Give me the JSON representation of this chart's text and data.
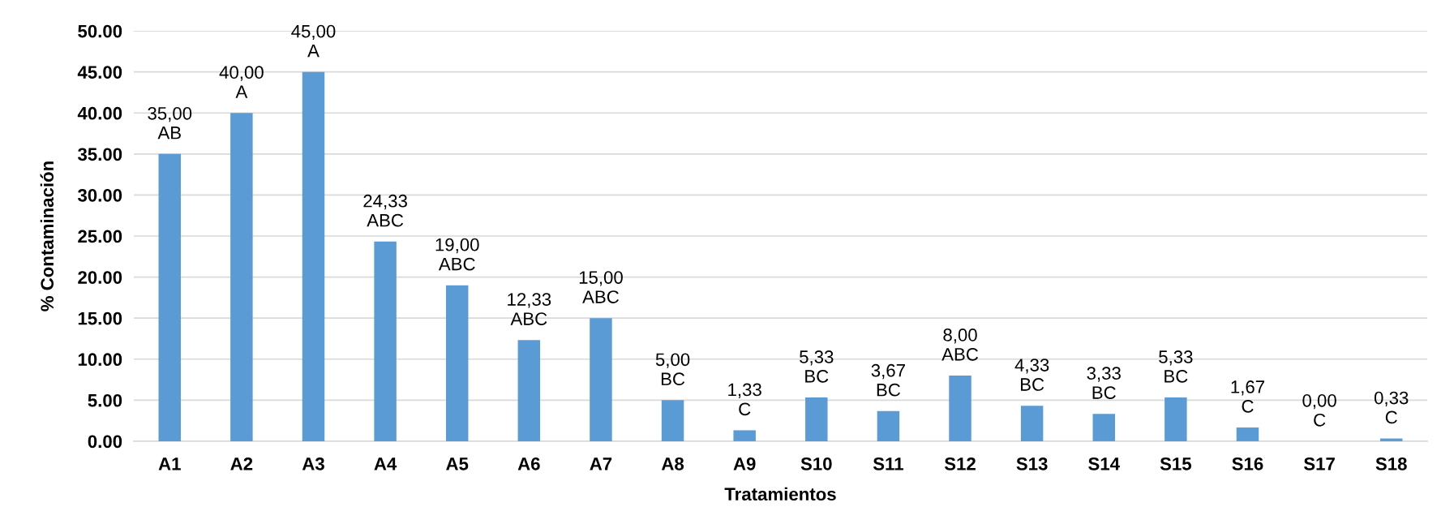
{
  "chart_data": {
    "type": "bar",
    "xlabel": "Tratamientos",
    "ylabel": "% Contaminación",
    "categories": [
      "A1",
      "A2",
      "A3",
      "A4",
      "A5",
      "A6",
      "A7",
      "A8",
      "A9",
      "S10",
      "S11",
      "S12",
      "S13",
      "S14",
      "S15",
      "S16",
      "S17",
      "S18"
    ],
    "values": [
      35,
      40,
      45,
      24.33,
      19,
      12.33,
      15,
      5,
      1.33,
      5.33,
      3.67,
      8,
      4.33,
      3.33,
      5.33,
      1.67,
      0,
      0.33
    ],
    "value_labels": [
      "35,00\nAB",
      "40,00\nA",
      "45,00\nA",
      "24,33\nABC",
      "19,00\nABC",
      "12,33\nABC",
      "15,00\nABC",
      "5,00\nBC",
      "1,33\nC",
      "5,33\nBC",
      "3,67\nBC",
      "8,00\nABC",
      "4,33\nBC",
      "3,33\nBC",
      "5,33\nBC",
      "1,67\nC",
      "0,00\nC",
      "0,33\nC"
    ],
    "color": "#5b9bd5",
    "ylim": [
      0,
      50
    ],
    "yticks": [
      {
        "value": 0,
        "label": "0.00"
      },
      {
        "value": 5,
        "label": "5.00"
      },
      {
        "value": 10,
        "label": "10.00"
      },
      {
        "value": 15,
        "label": "15.00"
      },
      {
        "value": 20,
        "label": "20.00"
      },
      {
        "value": 25,
        "label": "25.00"
      },
      {
        "value": 30,
        "label": "30.00"
      },
      {
        "value": 35,
        "label": "35.00"
      },
      {
        "value": 40,
        "label": "40.00"
      },
      {
        "value": 45,
        "label": "45.00"
      },
      {
        "value": 50,
        "label": "50.00"
      }
    ],
    "grid": "y",
    "legend": false
  }
}
